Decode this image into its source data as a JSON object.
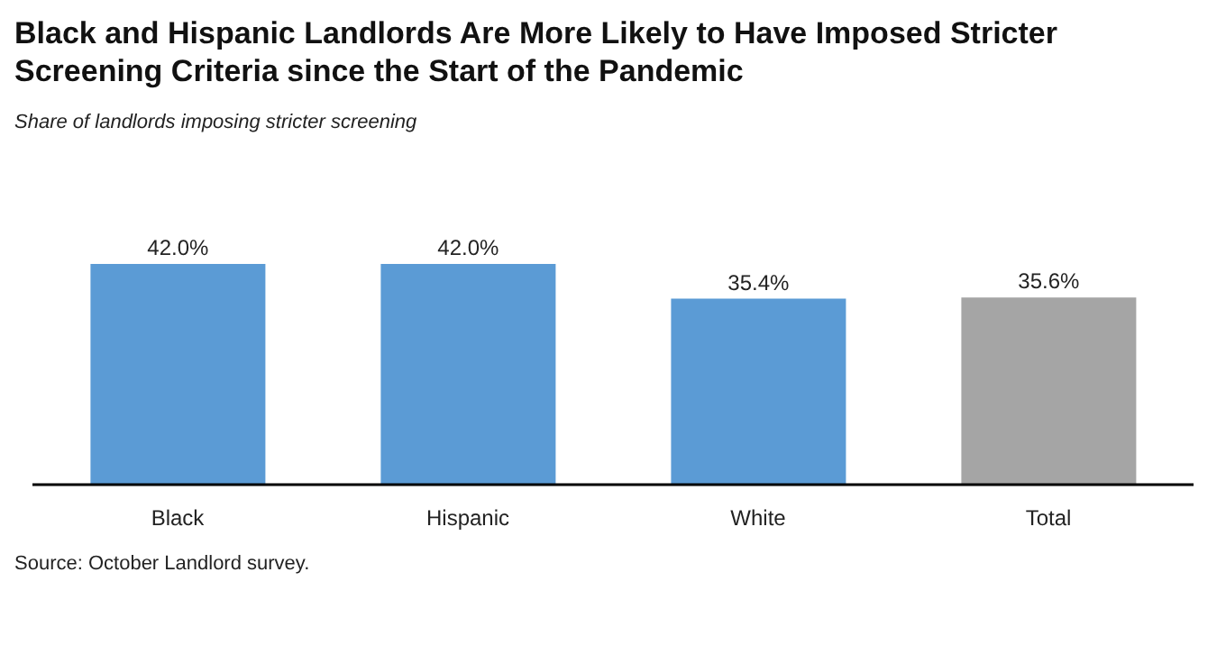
{
  "chart_data": {
    "type": "bar",
    "title": "Black and Hispanic Landlords Are More Likely to Have Imposed Stricter Screening Criteria since the Start of the Pandemic",
    "subtitle": "Share of landlords imposing stricter screening",
    "categories": [
      "Black",
      "Hispanic",
      "White",
      "Total"
    ],
    "values": [
      42.0,
      42.0,
      35.4,
      35.6
    ],
    "colors": [
      "#5b9bd5",
      "#5b9bd5",
      "#5b9bd5",
      "#a5a5a5"
    ],
    "value_labels": [
      "42.0%",
      "42.0%",
      "35.4%",
      "35.6%"
    ],
    "grid": false,
    "legend": false,
    "annotations": [
      "Source: October Landlord survey."
    ]
  }
}
